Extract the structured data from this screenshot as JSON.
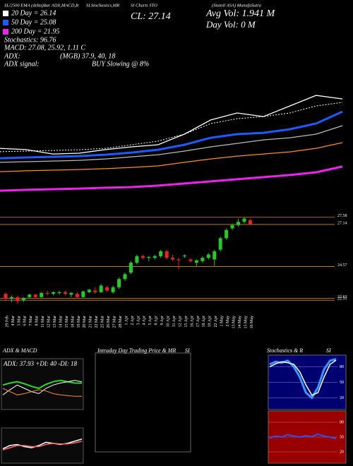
{
  "header": [
    "SL/2500 EMA (delta)Bar ADX,MACD,B",
    "SLStochastics,MR",
    "SI Charts STO",
    "(Statoil ASA) MunafaSutra"
  ],
  "chart_data": [
    {
      "type": "line",
      "annotations": [
        "20 Day = 26.14",
        "50 Day = 25.08",
        "200 Day = 21.95",
        "Stochastics: 96.76",
        "MACD: 27.08, 25.92, 1.11 C",
        "ADX:",
        "(MGB) 37.9, 40, 18",
        "ADX signal:",
        "BUY Slowing @ 8%",
        "CL: 27.14",
        "Avg Vol: 1.941 M",
        "Day Vol: 0  M"
      ],
      "ylim": [
        19,
        28.5
      ],
      "series": [
        {
          "color": "#ffffff",
          "style": "solid",
          "values": [
            23.43,
            23.31,
            22.92,
            22.99,
            23.31,
            23.56,
            23.75,
            24.7,
            25.97,
            26.6,
            26.28,
            27.23,
            28.18,
            27.86
          ]
        },
        {
          "color": "#ffffff",
          "style": "dotted",
          "values": [
            23.12,
            23.18,
            23.24,
            23.3,
            23.43,
            23.75,
            24.07,
            24.7,
            25.65,
            26.09,
            26.28,
            26.6,
            27.23,
            27.55
          ]
        },
        {
          "color": "#1e5bff",
          "style": "thick",
          "values": [
            22.54,
            22.61,
            22.67,
            22.73,
            22.86,
            23.05,
            23.3,
            23.75,
            24.38,
            24.7,
            24.82,
            25.14,
            25.65,
            26.72
          ]
        },
        {
          "color": "#bbbbbb",
          "style": "solid",
          "values": [
            22.17,
            22.23,
            22.29,
            22.35,
            22.48,
            22.67,
            22.86,
            23.18,
            23.56,
            23.87,
            24.19,
            24.38,
            24.7,
            25.46
          ]
        },
        {
          "color": "#ff8c1a",
          "style": "solid",
          "values": [
            21.34,
            21.41,
            21.47,
            21.53,
            21.6,
            21.72,
            21.85,
            22.17,
            22.48,
            22.73,
            22.92,
            23.11,
            23.43,
            23.94
          ]
        },
        {
          "color": "#ee22ee",
          "style": "thick",
          "values": [
            19.63,
            19.7,
            19.76,
            19.82,
            19.89,
            19.95,
            20.08,
            20.27,
            20.46,
            20.65,
            20.84,
            21.03,
            21.28,
            21.79
          ]
        }
      ]
    },
    {
      "type": "candlestick",
      "categories": [
        "29 Feb",
        "4 Mar",
        "5 Mar",
        "6 Mar",
        "7 Mar",
        "8 Mar",
        "11 Mar",
        "12 Mar",
        "13 Mar",
        "14 Mar",
        "15 Mar",
        "18 Mar",
        "19 Mar",
        "20 Mar",
        "21 Mar",
        "22 Mar",
        "25 Mar",
        "26 Mar",
        "27 Mar",
        "28 Mar",
        "1 Apr",
        "2 Apr",
        "3 Apr",
        "4 Apr",
        "5 Apr",
        "8 Apr",
        "9 Apr",
        "10 Apr",
        "11 Apr",
        "12 Apr",
        "15 Apr",
        "16 Apr",
        "17 Apr",
        "18 Apr",
        "19 Apr",
        "22 Apr",
        "1 May",
        "2 May",
        "13 May",
        "14 May",
        "15 May",
        "16 May"
      ],
      "open": [
        22.9,
        22.6,
        22.7,
        22.5,
        22.7,
        22.85,
        22.7,
        22.95,
        22.9,
        22.95,
        23.0,
        22.85,
        22.9,
        22.7,
        23.0,
        23.1,
        23.0,
        23.3,
        23.0,
        23.3,
        23.8,
        24.2,
        24.8,
        25.2,
        25.1,
        25.1,
        25.2,
        25.5,
        25.1,
        25.0,
        25.2,
        25.0,
        24.8,
        24.9,
        25.1,
        25.0,
        25.6,
        26.3,
        26.9,
        27.1,
        27.3,
        27.4
      ],
      "high": [
        23.0,
        22.8,
        22.8,
        22.7,
        22.9,
        22.9,
        23.0,
        23.1,
        23.05,
        23.1,
        23.1,
        23.0,
        23.0,
        23.1,
        23.2,
        23.3,
        23.5,
        23.4,
        23.4,
        23.9,
        24.2,
        24.9,
        25.3,
        25.3,
        25.2,
        25.3,
        25.6,
        25.6,
        25.3,
        25.1,
        25.3,
        25.1,
        25.0,
        25.2,
        25.4,
        25.6,
        26.4,
        26.9,
        27.2,
        27.5,
        27.6,
        27.5
      ],
      "low": [
        22.5,
        22.4,
        22.3,
        22.4,
        22.6,
        22.6,
        22.65,
        22.8,
        22.8,
        22.85,
        22.8,
        22.7,
        22.6,
        22.65,
        22.95,
        22.9,
        22.95,
        23.0,
        22.9,
        23.2,
        23.7,
        24.1,
        24.7,
        25.0,
        24.9,
        25.0,
        25.1,
        25.0,
        24.9,
        24.4,
        25.1,
        24.8,
        24.6,
        24.8,
        25.0,
        24.6,
        25.5,
        26.2,
        26.8,
        27.0,
        27.2,
        27.1
      ],
      "close": [
        22.6,
        22.7,
        22.45,
        22.65,
        22.85,
        22.7,
        22.95,
        22.9,
        23.0,
        23.0,
        22.9,
        22.95,
        22.7,
        23.05,
        23.15,
        23.0,
        23.4,
        23.1,
        23.3,
        23.8,
        24.1,
        24.8,
        25.2,
        25.1,
        25.15,
        25.2,
        25.5,
        25.1,
        25.0,
        24.95,
        25.25,
        24.9,
        24.95,
        25.1,
        25.3,
        25.5,
        26.3,
        26.8,
        27.1,
        27.3,
        27.5,
        27.14
      ],
      "ylim": [
        22,
        28
      ],
      "yticks": [
        27.58,
        27.14,
        24.57,
        22.63,
        22.51
      ],
      "up_color": "#22cc22",
      "down_color": "#ee2222"
    },
    {
      "type": "adx",
      "title": "ADX  & MACD",
      "label": "ADX: 37.93  +DI: 40  -DI: 18",
      "ylim": [
        0,
        60
      ],
      "series": [
        {
          "color": "#22dd22",
          "values": [
            35,
            38,
            40,
            37,
            33,
            30,
            36,
            40,
            42,
            40,
            38,
            37.93
          ]
        },
        {
          "color": "#ffffff",
          "values": [
            20,
            28,
            35,
            30,
            25,
            22,
            30,
            35,
            38,
            40,
            42,
            40
          ]
        },
        {
          "color": "#ff8c1a",
          "values": [
            30,
            25,
            20,
            22,
            25,
            28,
            26,
            22,
            20,
            19,
            18,
            18
          ]
        }
      ],
      "macd_ylim": [
        -1,
        2
      ],
      "macd_series": [
        {
          "color": "#ffffff",
          "values": [
            0.2,
            0.5,
            0.6,
            0.4,
            0.3,
            0.5,
            0.8,
            0.7,
            0.6,
            0.7,
            0.9,
            1.1
          ]
        },
        {
          "color": "#ff6666",
          "values": [
            0.1,
            0.3,
            0.5,
            0.5,
            0.4,
            0.4,
            0.6,
            0.7,
            0.65,
            0.65,
            0.75,
            0.9
          ]
        }
      ]
    },
    {
      "type": "intraday",
      "title": "Intraday Day Trading Price  & MR",
      "title2": "SI"
    },
    {
      "type": "stochastics",
      "title": "Stochastics & R",
      "title2": "SI",
      "ylim": [
        0,
        100
      ],
      "yticks": [
        80,
        50,
        20
      ],
      "series": [
        {
          "color": "#3399ff",
          "values": [
            85,
            90,
            88,
            92,
            80,
            60,
            30,
            20,
            40,
            75,
            92,
            95
          ]
        },
        {
          "color": "#ffffff",
          "values": [
            80,
            86,
            90,
            88,
            85,
            70,
            45,
            25,
            30,
            60,
            85,
            93
          ]
        }
      ],
      "mr_ylim": [
        0,
        100
      ],
      "mr_yticks": [
        80,
        50,
        20
      ],
      "mr_series": [
        {
          "color": "#2255ff",
          "values": [
            48,
            52,
            50,
            55,
            52,
            50,
            53,
            51,
            56,
            52,
            50,
            47
          ]
        }
      ]
    }
  ]
}
